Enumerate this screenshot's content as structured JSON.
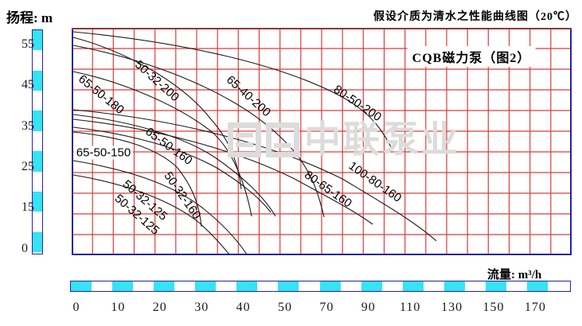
{
  "header": {
    "y_axis_label": "扬程: m",
    "title": "假设介质为清水之性能曲线图（20℃）"
  },
  "chart_box_label": "CQB磁力泵（图2）",
  "flow_axis_label": "流量: m³/h",
  "watermark": {
    "text": "中联泵业"
  },
  "y_ticks": [
    "55",
    "45",
    "35",
    "25",
    "15",
    "0"
  ],
  "x_ticks": [
    "0",
    "10",
    "20",
    "30",
    "40",
    "50",
    "70",
    "90",
    "110",
    "130",
    "150",
    "170"
  ],
  "colors": {
    "accent_cyan": "#35e3f2",
    "grid_red": "#e03a3a",
    "axis_navy": "#2424a8",
    "border_maroon": "#993333",
    "curve_black": "#1a1a1a",
    "watermark_gray": "#dcdcdc"
  },
  "curves": [
    {
      "label": "80-50-200"
    },
    {
      "label": "50-32-200"
    },
    {
      "label": "65-40-200"
    },
    {
      "label": "65-50-180"
    },
    {
      "label": "100-80-160"
    },
    {
      "label": "65-50-160"
    },
    {
      "label": "80-65-160"
    },
    {
      "label": "65-50-150"
    },
    {
      "label": "50-32-160"
    },
    {
      "label": "50-32-125"
    },
    {
      "label": "50-32-125"
    }
  ],
  "chart_data": {
    "type": "line",
    "title": "假设介质为清水之性能曲线图（20℃） — CQB磁力泵（图2）",
    "xlabel": "流量: m³/h",
    "ylabel": "扬程: m",
    "x_tick_labels": [
      0,
      10,
      20,
      30,
      40,
      50,
      70,
      90,
      110,
      130,
      150,
      170
    ],
    "y_tick_labels": [
      55,
      45,
      35,
      25,
      15,
      0
    ],
    "grid": true,
    "legend_position": "labels-on-curves",
    "series": [
      {
        "name": "80-50-200",
        "points": [
          [
            0,
            58
          ],
          [
            30,
            52
          ],
          [
            65,
            42
          ],
          [
            101,
            29
          ]
        ]
      },
      {
        "name": "50-32-200",
        "points": [
          [
            0,
            57
          ],
          [
            15,
            48
          ],
          [
            30,
            33
          ],
          [
            40,
            20
          ]
        ]
      },
      {
        "name": "65-40-200",
        "points": [
          [
            0,
            55
          ],
          [
            20,
            46
          ],
          [
            45,
            28
          ],
          [
            68,
            13
          ]
        ]
      },
      {
        "name": "65-50-180",
        "points": [
          [
            0,
            48
          ],
          [
            15,
            42
          ],
          [
            30,
            26
          ],
          [
            42,
            13
          ]
        ]
      },
      {
        "name": "100-80-160",
        "points": [
          [
            0,
            39
          ],
          [
            40,
            33
          ],
          [
            85,
            21
          ],
          [
            122,
            7
          ]
        ]
      },
      {
        "name": "65-50-160",
        "points": [
          [
            0,
            38
          ],
          [
            15,
            34
          ],
          [
            32,
            23
          ],
          [
            45,
            13
          ]
        ]
      },
      {
        "name": "80-65-160",
        "points": [
          [
            0,
            36
          ],
          [
            35,
            30
          ],
          [
            70,
            20
          ],
          [
            92,
            11
          ]
        ]
      },
      {
        "name": "65-50-150",
        "points": [
          [
            0,
            34
          ],
          [
            15,
            30
          ],
          [
            32,
            21
          ],
          [
            44,
            14
          ]
        ]
      },
      {
        "name": "50-32-160",
        "points": [
          [
            0,
            33
          ],
          [
            12,
            29
          ],
          [
            22,
            20
          ],
          [
            30,
            10
          ]
        ]
      },
      {
        "name": "50-32-125",
        "points": [
          [
            0,
            26
          ],
          [
            15,
            22
          ],
          [
            30,
            11
          ],
          [
            41,
            2
          ]
        ]
      },
      {
        "name": "50-32-125",
        "points": [
          [
            0,
            22
          ],
          [
            14,
            18
          ],
          [
            28,
            8
          ],
          [
            39,
            1
          ]
        ]
      }
    ]
  }
}
